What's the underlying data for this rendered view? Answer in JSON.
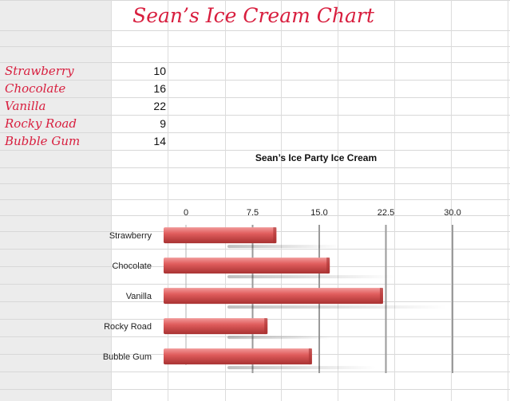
{
  "sheet": {
    "title": "Sean’s Ice Cream Chart",
    "rows": [
      {
        "flavor": "Strawberry",
        "count": "10"
      },
      {
        "flavor": "Chocolate",
        "count": "16"
      },
      {
        "flavor": "Vanilla",
        "count": "22"
      },
      {
        "flavor": "Rocky Road",
        "count": "9"
      },
      {
        "flavor": "Bubble Gum",
        "count": "14"
      }
    ]
  },
  "colors": {
    "title_text": "#d81e3e",
    "bar_fill": "#e05c5c",
    "bar_dark": "#a83232"
  },
  "chart_data": {
    "type": "bar",
    "orientation": "horizontal",
    "title": "Sean’s Ice Party Ice Cream",
    "categories": [
      "Strawberry",
      "Chocolate",
      "Vanilla",
      "Rocky Road",
      "Bubble Gum"
    ],
    "values": [
      10,
      16,
      22,
      9,
      14
    ],
    "xticks": [
      "0",
      "7.5",
      "15.0",
      "22.5",
      "30.0"
    ],
    "xlim": [
      0,
      30
    ],
    "legend": "none",
    "grid": true
  }
}
